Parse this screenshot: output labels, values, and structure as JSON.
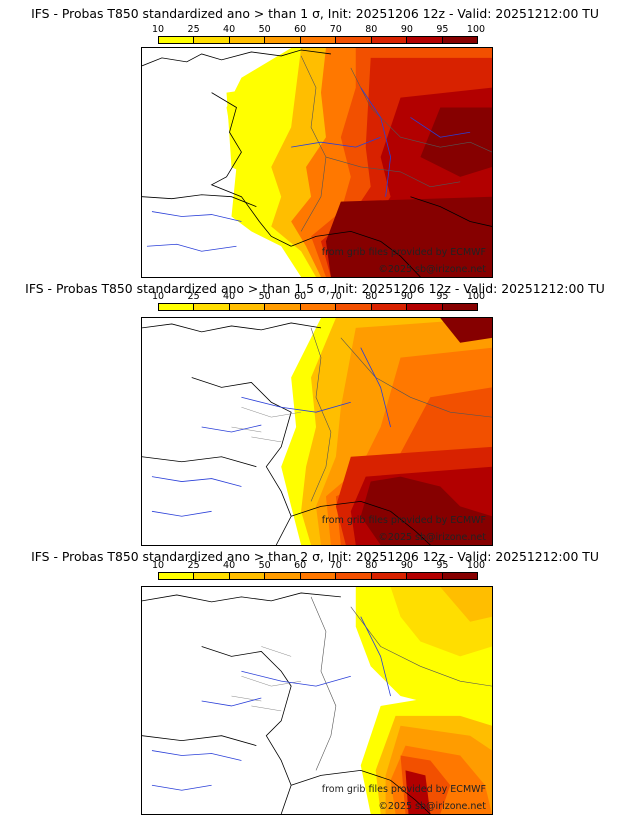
{
  "legend": {
    "ticks": [
      "10",
      "25",
      "40",
      "50",
      "60",
      "70",
      "80",
      "90",
      "95",
      "100"
    ],
    "colors": [
      "#ffff00",
      "#ffde00",
      "#ffbe00",
      "#ff9c00",
      "#ff7800",
      "#f25000",
      "#d82200",
      "#b20000",
      "#860000",
      "#5a0000"
    ]
  },
  "panels": [
    {
      "title": "IFS - Probas T850  standardized ano > than 1 σ, Init: 20251206 12z - Valid: 20251212:00 TU",
      "credit_line1": "from grib files provided by ECMWF",
      "credit_line2": "©2025 sb@irizone.net"
    },
    {
      "title": "IFS - Probas T850  standardized ano > than 1.5 σ, Init: 20251206 12z - Valid: 20251212:00 TU",
      "credit_line1": "from grib files provided by ECMWF",
      "credit_line2": "©2025 sb@irizone.net"
    },
    {
      "title": "IFS - Probas T850  standardized ano > than 2 σ, Init: 20251206 12z - Valid: 20251212:00 TU",
      "credit_line1": "from grib files provided by ECMWF",
      "credit_line2": "©2025 sb@irizone.net"
    }
  ]
}
